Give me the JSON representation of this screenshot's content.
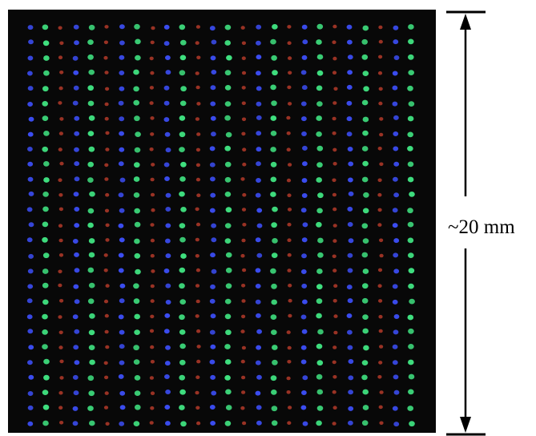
{
  "image": {
    "content": "led-dot-matrix-array-photo",
    "background_color": "#080808",
    "led_colors": [
      "#3b4df2",
      "#3fe07f",
      "#c9402e"
    ],
    "grid": {
      "columns": 26,
      "rows": 27
    }
  },
  "scale_bar": {
    "label": "~20 mm",
    "color": "#000000"
  }
}
